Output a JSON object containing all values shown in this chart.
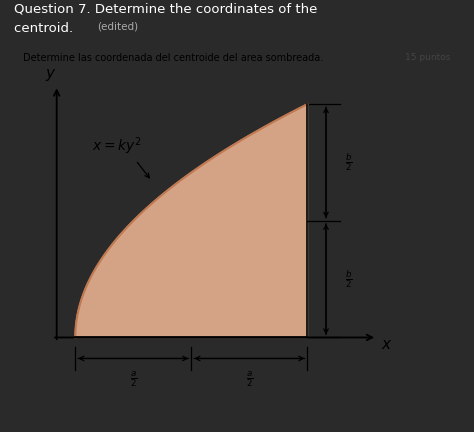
{
  "title_line1": "Question 7. Determine the coordinates of the",
  "title_line2": "centroid.",
  "title_edited": "(edited)",
  "subtitle": "Determine las coordenada del centroide del area sombreada.",
  "subtitle_right": "15 puntos",
  "bg_outer": "#2a2a2a",
  "bg_panel": "#d8dce0",
  "shaded_color": "#e8b090",
  "shaded_edge_color": "#c07850",
  "figsize": [
    4.74,
    4.32
  ],
  "dpi": 100
}
